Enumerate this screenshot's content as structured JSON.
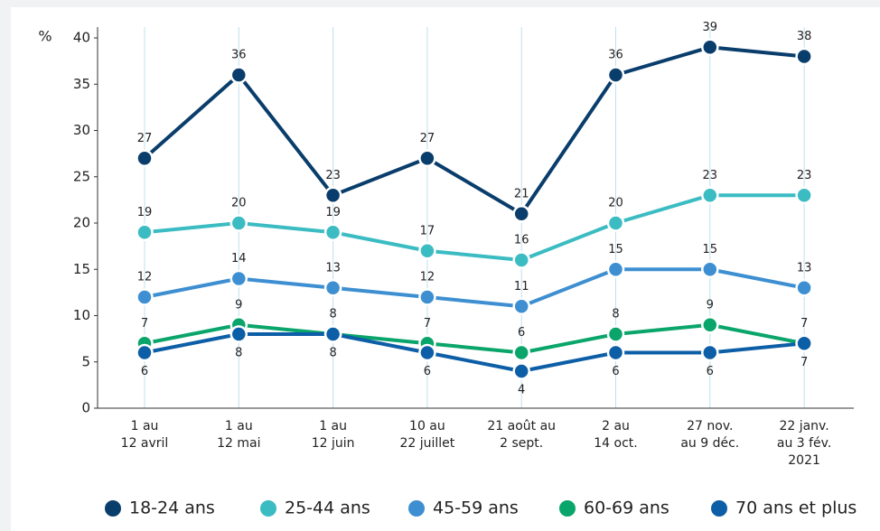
{
  "chart_data": {
    "type": "line",
    "y_label": "%",
    "categories": [
      "1 au\n12 avril",
      "1 au\n12 mai",
      "1 au\n12 juin",
      "10 au\n22 juillet",
      "21 août au\n2 sept.",
      "2 au\n14 oct.",
      "27 nov.\nau 9 déc.",
      "22 janv.\nau 3 fév.\n2021"
    ],
    "ylim": [
      0,
      40
    ],
    "yticks": [
      0,
      5,
      10,
      15,
      20,
      25,
      30,
      35,
      40
    ],
    "grid": true,
    "legend": "bottom",
    "series": [
      {
        "name": "18-24 ans",
        "color": "#093d6b",
        "values": [
          27,
          36,
          23,
          27,
          21,
          36,
          39,
          38
        ]
      },
      {
        "name": "25-44 ans",
        "color": "#3bbcc2",
        "values": [
          19,
          20,
          19,
          17,
          16,
          20,
          23,
          23
        ]
      },
      {
        "name": "45-59 ans",
        "color": "#3d8fd1",
        "values": [
          12,
          14,
          13,
          12,
          11,
          15,
          15,
          13
        ]
      },
      {
        "name": "60-69 ans",
        "color": "#0aa56a",
        "values": [
          7,
          9,
          8,
          7,
          6,
          8,
          9,
          7
        ]
      },
      {
        "name": "70 ans et plus",
        "color": "#0c5ea6",
        "values": [
          6,
          8,
          8,
          6,
          4,
          6,
          6,
          7
        ]
      }
    ]
  }
}
